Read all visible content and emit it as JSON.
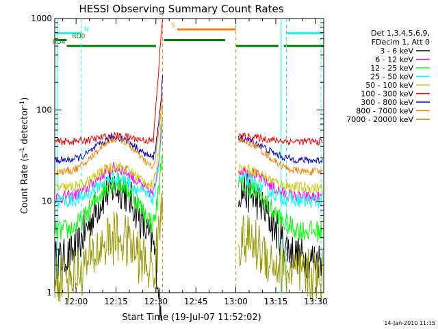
{
  "chart_data": {
    "type": "line",
    "title": "HESSI Observing Summary Count Rates",
    "xlabel": "Start Time (19-Jul-07 11:52:02)",
    "ylabel_main": "Count Rate (s",
    "ylabel_sup1": "-1",
    "ylabel_mid": " detector",
    "ylabel_sup2": "-1",
    "ylabel_end": ")",
    "date_stamp": "14-Jan-2010 11:15",
    "x_time_range_min": [
      712,
      813
    ],
    "y_log_range": [
      1,
      1000
    ],
    "x_ticks": [
      {
        "t": 720,
        "label": "12:00"
      },
      {
        "t": 735,
        "label": "12:15"
      },
      {
        "t": 750,
        "label": "12:30"
      },
      {
        "t": 765,
        "label": "12:45"
      },
      {
        "t": 780,
        "label": "13:00"
      },
      {
        "t": 795,
        "label": "13:15"
      },
      {
        "t": 810,
        "label": "13:30"
      }
    ],
    "y_ticks": [
      {
        "v": 1,
        "label": "1"
      },
      {
        "v": 10,
        "label": "10"
      },
      {
        "v": 100,
        "label": "100"
      },
      {
        "v": 1000,
        "label": "1000"
      }
    ],
    "legend": {
      "header": [
        "Det 1,3,4,5,6,9,",
        "FDecim 1, Att 0"
      ],
      "entries": [
        {
          "label": "3 - 6 keV",
          "color": "#000000"
        },
        {
          "label": "6 - 12 keV",
          "color": "#ff00ff"
        },
        {
          "label": "12 - 25 keV",
          "color": "#00ff00"
        },
        {
          "label": "25 - 50 keV",
          "color": "#00ffff"
        },
        {
          "label": "50 - 100 keV",
          "color": "#cccc00"
        },
        {
          "label": "100 - 300 keV",
          "color": "#ff0000"
        },
        {
          "label": "300 - 800 keV",
          "color": "#0000cc"
        },
        {
          "label": "800 - 7000 keV",
          "color": "#ff8000"
        },
        {
          "label": "7000 - 20000 keV",
          "color": "#999900"
        }
      ]
    },
    "series": [
      {
        "name": "3 - 6 keV",
        "color": "#000000",
        "base": 2.3,
        "peak": 14,
        "noise": 0.22
      },
      {
        "name": "6 - 12 keV",
        "color": "#ff00ff",
        "base": 11,
        "peak": 23,
        "noise": 0.07
      },
      {
        "name": "12 - 25 keV",
        "color": "#00ff00",
        "base": 4.7,
        "peak": 16,
        "noise": 0.12
      },
      {
        "name": "25 - 50 keV",
        "color": "#00ffff",
        "base": 10,
        "peak": 18,
        "noise": 0.08
      },
      {
        "name": "50 - 100 keV",
        "color": "#cccc00",
        "base": 14,
        "peak": 24,
        "noise": 0.06
      },
      {
        "name": "100 - 300 keV",
        "color": "#ff0000",
        "base": 45,
        "peak": 52,
        "noise": 0.04
      },
      {
        "name": "300 - 800 keV",
        "color": "#0000cc",
        "base": 28,
        "peak": 50,
        "noise": 0.04
      },
      {
        "name": "800 - 7000 keV",
        "color": "#ff8000",
        "base": 21,
        "peak": 48,
        "noise": 0.04
      },
      {
        "name": "7000 - 20000 keV",
        "color": "#999900",
        "base": 1.5,
        "peak": 4,
        "noise": 0.3
      }
    ],
    "flag_bars": [
      {
        "label": "N",
        "color": "#00ffff",
        "y": 690,
        "ranges": [
          [
            712,
            722
          ],
          [
            799,
            813
          ]
        ]
      },
      {
        "label": "RD0",
        "color": "#007f00",
        "y": 580,
        "ranges": [
          [
            712,
            716.5
          ],
          [
            753,
            776
          ]
        ]
      },
      {
        "label": "RD4",
        "color": "#007f00",
        "y": 500,
        "ranges": [
          [
            716.5,
            750
          ],
          [
            780,
            796
          ],
          [
            798,
            813
          ]
        ]
      },
      {
        "label": "S",
        "color": "#ff8000",
        "y": 760,
        "ranges": [
          [
            758,
            780
          ]
        ]
      }
    ],
    "vlines_cyan": [
      722,
      799,
      812
    ],
    "vlines_orange": [
      752.5,
      780
    ],
    "vlines_solid_cyan": [
      713,
      797
    ]
  }
}
